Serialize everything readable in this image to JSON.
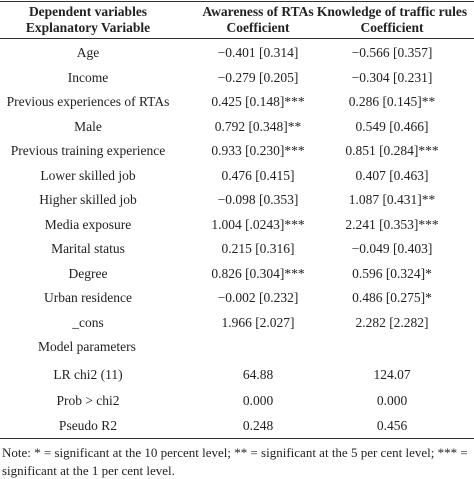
{
  "header": {
    "col1": [
      "Dependent variables",
      "Explanatory Variable"
    ],
    "col2": [
      "Awareness of RTAs",
      "Coefficient"
    ],
    "col3": [
      "Knowledge of traffic rules",
      "Coefficient"
    ]
  },
  "rows": [
    [
      "Age",
      "−0.401 [0.314]",
      "−0.566 [0.357]"
    ],
    [
      "Income",
      "−0.279 [0.205]",
      "−0.304 [0.231]"
    ],
    [
      "Previous experiences of RTAs",
      "0.425 [0.148]***",
      "0.286 [0.145]**"
    ],
    [
      "Male",
      "0.792 [0.348]**",
      "0.549 [0.466]"
    ],
    [
      "Previous training experience",
      "0.933 [0.230]***",
      "0.851 [0.284]***"
    ],
    [
      "Lower skilled job",
      "0.476 [0.415]",
      "0.407 [0.463]"
    ],
    [
      "Higher skilled job",
      "−0.098 [0.353]",
      "1.087 [0.431]**"
    ],
    [
      "Media exposure",
      "1.004 [.0243]***",
      "2.241 [0.353]***"
    ],
    [
      "Marital status",
      "0.215 [0.316]",
      "−0.049 [0.403]"
    ],
    [
      "Degree",
      "0.826 [0.304]***",
      "0.596 [0.324]*"
    ],
    [
      "Urban residence",
      "−0.002 [0.232]",
      "0.486 [0.275]*"
    ],
    [
      "_cons",
      "1.966 [2.027]",
      "2.282 [2.282]"
    ]
  ],
  "section": "Model parameters",
  "params": [
    [
      "LR chi2 (11)",
      "64.88",
      "124.07"
    ],
    [
      "Prob > chi2",
      "0.000",
      "0.000"
    ],
    [
      "Pseudo R2",
      "0.248",
      "0.456"
    ]
  ],
  "note": "Note: * = significant at the 10 percent level; ** = significant at the 5 per cent level; *** = significant at the 1 per cent level."
}
